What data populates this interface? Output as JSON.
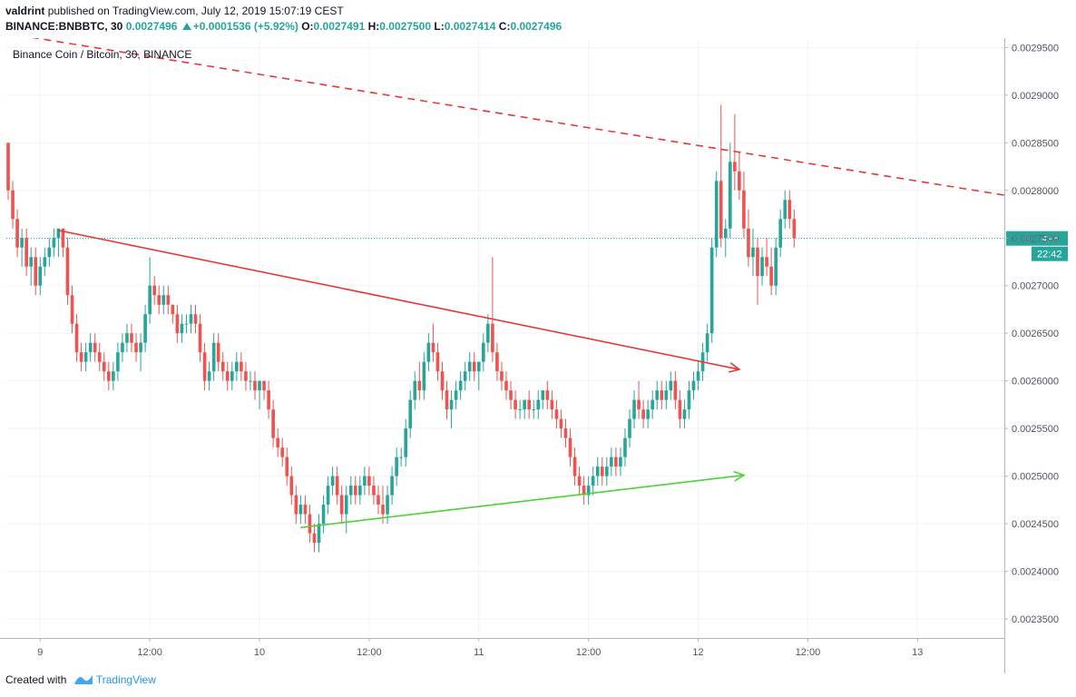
{
  "header": {
    "author": "valdrint",
    "published_text": "published on TradingView.com, July 12, 2019 15:07:19 CEST",
    "symbol": "BINANCE:BNBBTC, 30",
    "last": "0.0027496",
    "change": "+0.0001536 (+5.92%)",
    "o_label": "O:",
    "o_value": "0.0027491",
    "h_label": "H:",
    "h_value": "0.0027500",
    "l_label": "L:",
    "l_value": "0.0027414",
    "c_label": "C:",
    "c_value": "0.0027496"
  },
  "footer": {
    "created_with": "Created with",
    "brand": "TradingView"
  },
  "colors": {
    "up": "#26a69a",
    "down": "#ef5350",
    "trend_red": "#e53935",
    "trend_green": "#4cd137",
    "price_line": "#26a69a"
  },
  "chart_data": {
    "type": "candlestick",
    "title": "Binance Coin / Bitcoin, 30, BINANCE",
    "ylim": [
      0.00233,
      0.002958
    ],
    "y_ticks": [
      "0.0023500",
      "0.0024000",
      "0.0024500",
      "0.0025000",
      "0.0025500",
      "0.0026000",
      "0.0026500",
      "0.0027000",
      "0.0027500",
      "0.0028000",
      "0.0028500",
      "0.0029000",
      "0.0029500"
    ],
    "y_tick_values": [
      0.00235,
      0.0024,
      0.00245,
      0.0025,
      0.00255,
      0.0026,
      0.00265,
      0.0027,
      0.00275,
      0.0028,
      0.00285,
      0.0029,
      0.00295
    ],
    "x_ticks": [
      {
        "label": "9",
        "t": 0
      },
      {
        "label": "12:00",
        "t": 12
      },
      {
        "label": "10",
        "t": 24
      },
      {
        "label": "12:00",
        "t": 36
      },
      {
        "label": "11",
        "t": 48
      },
      {
        "label": "12:00",
        "t": 60
      },
      {
        "label": "12",
        "t": 72
      },
      {
        "label": "12:00",
        "t": 84
      },
      {
        "label": "13",
        "t": 96
      }
    ],
    "time_unit": "hours since July 9 00:00",
    "xlim": [
      -3.7,
      105.5
    ],
    "last_price": "0.0027496",
    "countdown": "22:42",
    "candles": [
      [
        -3.5,
        0.00285,
        0.00285,
        0.00279,
        0.0028
      ],
      [
        -3.0,
        0.0028,
        0.00281,
        0.00276,
        0.00277
      ],
      [
        -2.5,
        0.00277,
        0.00278,
        0.00273,
        0.00274
      ],
      [
        -2.0,
        0.00274,
        0.00276,
        0.00272,
        0.00275
      ],
      [
        -1.5,
        0.00275,
        0.00276,
        0.00271,
        0.00272
      ],
      [
        -1.0,
        0.00272,
        0.00274,
        0.0027,
        0.00273
      ],
      [
        -0.5,
        0.00273,
        0.00274,
        0.00269,
        0.0027
      ],
      [
        0.0,
        0.0027,
        0.00273,
        0.00269,
        0.00272
      ],
      [
        0.5,
        0.00272,
        0.00274,
        0.00271,
        0.00273
      ],
      [
        1.0,
        0.00273,
        0.00275,
        0.00272,
        0.00274
      ],
      [
        1.5,
        0.00274,
        0.00276,
        0.00273,
        0.00275
      ],
      [
        2.0,
        0.00275,
        0.00276,
        0.00273,
        0.00276
      ],
      [
        2.5,
        0.00276,
        0.00276,
        0.00273,
        0.00274
      ],
      [
        3.0,
        0.00274,
        0.00275,
        0.00268,
        0.00269
      ],
      [
        3.5,
        0.00269,
        0.0027,
        0.00265,
        0.00266
      ],
      [
        4.0,
        0.00266,
        0.00267,
        0.00262,
        0.00263
      ],
      [
        4.5,
        0.00263,
        0.00264,
        0.00261,
        0.00262
      ],
      [
        5.0,
        0.00262,
        0.00264,
        0.00261,
        0.00263
      ],
      [
        5.5,
        0.00263,
        0.00265,
        0.00262,
        0.00264
      ],
      [
        6.0,
        0.00264,
        0.00265,
        0.00262,
        0.00263
      ],
      [
        6.5,
        0.00263,
        0.00264,
        0.00261,
        0.00262
      ],
      [
        7.0,
        0.00262,
        0.00263,
        0.0026,
        0.00261
      ],
      [
        7.5,
        0.00261,
        0.00262,
        0.00259,
        0.0026
      ],
      [
        8.0,
        0.0026,
        0.00262,
        0.00259,
        0.00261
      ],
      [
        8.5,
        0.00261,
        0.00264,
        0.0026,
        0.00263
      ],
      [
        9.0,
        0.00263,
        0.00265,
        0.00262,
        0.00264
      ],
      [
        9.5,
        0.00264,
        0.00266,
        0.00263,
        0.00265
      ],
      [
        10.0,
        0.00265,
        0.00266,
        0.00263,
        0.00264
      ],
      [
        10.5,
        0.00264,
        0.00265,
        0.00262,
        0.00263
      ],
      [
        11.0,
        0.00263,
        0.00265,
        0.00261,
        0.00264
      ],
      [
        11.5,
        0.00264,
        0.00268,
        0.00263,
        0.00267
      ],
      [
        12.0,
        0.00267,
        0.00273,
        0.00266,
        0.0027
      ],
      [
        12.5,
        0.0027,
        0.00271,
        0.00268,
        0.00269
      ],
      [
        13.0,
        0.00269,
        0.0027,
        0.00267,
        0.00268
      ],
      [
        13.5,
        0.00268,
        0.0027,
        0.00267,
        0.00269
      ],
      [
        14.0,
        0.00269,
        0.0027,
        0.00267,
        0.00268
      ],
      [
        14.5,
        0.00268,
        0.00268,
        0.00266,
        0.00267
      ],
      [
        15.0,
        0.00267,
        0.00268,
        0.00264,
        0.00265
      ],
      [
        15.5,
        0.00265,
        0.00267,
        0.00264,
        0.00266
      ],
      [
        16.0,
        0.00266,
        0.00267,
        0.00265,
        0.00266
      ],
      [
        16.5,
        0.00266,
        0.00268,
        0.00265,
        0.00267
      ],
      [
        17.0,
        0.00267,
        0.00268,
        0.00265,
        0.00266
      ],
      [
        17.5,
        0.00266,
        0.00267,
        0.00262,
        0.00263
      ],
      [
        18.0,
        0.00263,
        0.00264,
        0.00259,
        0.0026
      ],
      [
        18.5,
        0.0026,
        0.00262,
        0.00259,
        0.00261
      ],
      [
        19.0,
        0.00261,
        0.00265,
        0.0026,
        0.00264
      ],
      [
        19.5,
        0.00264,
        0.00265,
        0.00261,
        0.00262
      ],
      [
        20.0,
        0.00262,
        0.00263,
        0.0026,
        0.00261
      ],
      [
        20.5,
        0.00261,
        0.00262,
        0.00259,
        0.0026
      ],
      [
        21.0,
        0.0026,
        0.00262,
        0.00259,
        0.00261
      ],
      [
        21.5,
        0.00261,
        0.00263,
        0.0026,
        0.00262
      ],
      [
        22.0,
        0.00262,
        0.00263,
        0.0026,
        0.00261
      ],
      [
        22.5,
        0.00261,
        0.00262,
        0.00259,
        0.0026
      ],
      [
        23.0,
        0.0026,
        0.00261,
        0.00259,
        0.0026
      ],
      [
        23.5,
        0.0026,
        0.00261,
        0.00258,
        0.00259
      ],
      [
        24.0,
        0.00259,
        0.0026,
        0.00257,
        0.0026
      ],
      [
        24.5,
        0.0026,
        0.0026,
        0.00258,
        0.00259
      ],
      [
        25.0,
        0.00259,
        0.0026,
        0.00256,
        0.00257
      ],
      [
        25.5,
        0.00257,
        0.00258,
        0.00253,
        0.00254
      ],
      [
        26.0,
        0.00254,
        0.00255,
        0.00252,
        0.00253
      ],
      [
        26.5,
        0.00253,
        0.00254,
        0.00251,
        0.00252
      ],
      [
        27.0,
        0.00252,
        0.00253,
        0.00249,
        0.0025
      ],
      [
        27.5,
        0.0025,
        0.00251,
        0.00247,
        0.00248
      ],
      [
        28.0,
        0.00248,
        0.00249,
        0.00245,
        0.00246
      ],
      [
        28.5,
        0.00246,
        0.00248,
        0.00245,
        0.00247
      ],
      [
        29.0,
        0.00247,
        0.00248,
        0.00245,
        0.00246
      ],
      [
        29.5,
        0.00246,
        0.00247,
        0.00243,
        0.00244
      ],
      [
        30.0,
        0.00244,
        0.00245,
        0.00242,
        0.00243
      ],
      [
        30.5,
        0.00243,
        0.00246,
        0.00242,
        0.00245
      ],
      [
        31.0,
        0.00245,
        0.00248,
        0.00244,
        0.00247
      ],
      [
        31.5,
        0.00247,
        0.0025,
        0.00246,
        0.00249
      ],
      [
        32.0,
        0.00249,
        0.00251,
        0.00248,
        0.0025
      ],
      [
        32.5,
        0.0025,
        0.00251,
        0.00247,
        0.00248
      ],
      [
        33.0,
        0.00248,
        0.00249,
        0.00245,
        0.00246
      ],
      [
        33.5,
        0.00246,
        0.00249,
        0.00244,
        0.00248
      ],
      [
        34.0,
        0.00248,
        0.0025,
        0.00247,
        0.00249
      ],
      [
        34.5,
        0.00249,
        0.0025,
        0.00247,
        0.00248
      ],
      [
        35.0,
        0.00248,
        0.0025,
        0.00247,
        0.00249
      ],
      [
        35.5,
        0.00249,
        0.00251,
        0.00248,
        0.0025
      ],
      [
        36.0,
        0.0025,
        0.00251,
        0.00248,
        0.00249
      ],
      [
        36.5,
        0.00249,
        0.0025,
        0.00247,
        0.00248
      ],
      [
        37.0,
        0.00248,
        0.00249,
        0.00246,
        0.00247
      ],
      [
        37.5,
        0.00247,
        0.00249,
        0.00245,
        0.00246
      ],
      [
        38.0,
        0.00246,
        0.00249,
        0.00245,
        0.00248
      ],
      [
        38.5,
        0.00248,
        0.00251,
        0.00247,
        0.0025
      ],
      [
        39.0,
        0.0025,
        0.00253,
        0.00249,
        0.00252
      ],
      [
        39.5,
        0.00252,
        0.00253,
        0.00251,
        0.00252
      ],
      [
        40.0,
        0.00252,
        0.00256,
        0.00251,
        0.00255
      ],
      [
        40.5,
        0.00255,
        0.00259,
        0.00254,
        0.00258
      ],
      [
        41.0,
        0.00258,
        0.00261,
        0.00257,
        0.0026
      ],
      [
        41.5,
        0.0026,
        0.00262,
        0.00258,
        0.00259
      ],
      [
        42.0,
        0.00259,
        0.00263,
        0.00258,
        0.00262
      ],
      [
        42.5,
        0.00262,
        0.00265,
        0.00261,
        0.00264
      ],
      [
        43.0,
        0.00264,
        0.00266,
        0.00262,
        0.00263
      ],
      [
        43.5,
        0.00263,
        0.00264,
        0.0026,
        0.00261
      ],
      [
        44.0,
        0.00261,
        0.00262,
        0.00258,
        0.00259
      ],
      [
        44.5,
        0.00259,
        0.0026,
        0.00256,
        0.00257
      ],
      [
        45.0,
        0.00257,
        0.00259,
        0.00255,
        0.00258
      ],
      [
        45.5,
        0.00258,
        0.0026,
        0.00257,
        0.00259
      ],
      [
        46.0,
        0.00259,
        0.00261,
        0.00258,
        0.0026
      ],
      [
        46.5,
        0.0026,
        0.00262,
        0.00259,
        0.00261
      ],
      [
        47.0,
        0.00261,
        0.00263,
        0.0026,
        0.00262
      ],
      [
        47.5,
        0.00262,
        0.00263,
        0.0026,
        0.00261
      ],
      [
        48.0,
        0.00261,
        0.00262,
        0.00259,
        0.00262
      ],
      [
        48.5,
        0.00262,
        0.00265,
        0.00261,
        0.00264
      ],
      [
        49.0,
        0.00264,
        0.00267,
        0.00263,
        0.00266
      ],
      [
        49.5,
        0.00266,
        0.00273,
        0.00262,
        0.00263
      ],
      [
        50.0,
        0.00263,
        0.00264,
        0.0026,
        0.00261
      ],
      [
        50.5,
        0.00261,
        0.00262,
        0.00259,
        0.0026
      ],
      [
        51.0,
        0.0026,
        0.00261,
        0.00258,
        0.00259
      ],
      [
        51.5,
        0.00259,
        0.0026,
        0.00257,
        0.00258
      ],
      [
        52.0,
        0.00258,
        0.00259,
        0.00256,
        0.00257
      ],
      [
        52.5,
        0.00257,
        0.00258,
        0.00256,
        0.00257
      ],
      [
        53.0,
        0.00257,
        0.00258,
        0.00256,
        0.00258
      ],
      [
        53.5,
        0.00258,
        0.00259,
        0.00256,
        0.00257
      ],
      [
        54.0,
        0.00257,
        0.00258,
        0.00256,
        0.00257
      ],
      [
        54.5,
        0.00257,
        0.00259,
        0.00256,
        0.00258
      ],
      [
        55.0,
        0.00258,
        0.00259,
        0.00257,
        0.00259
      ],
      [
        55.5,
        0.00259,
        0.0026,
        0.00257,
        0.00258
      ],
      [
        56.0,
        0.00258,
        0.00259,
        0.00256,
        0.00257
      ],
      [
        56.5,
        0.00257,
        0.00258,
        0.00255,
        0.00256
      ],
      [
        57.0,
        0.00256,
        0.00257,
        0.00254,
        0.00255
      ],
      [
        57.5,
        0.00255,
        0.00256,
        0.00253,
        0.00254
      ],
      [
        58.0,
        0.00254,
        0.00255,
        0.00251,
        0.00252
      ],
      [
        58.5,
        0.00252,
        0.00253,
        0.00249,
        0.0025
      ],
      [
        59.0,
        0.0025,
        0.00251,
        0.00248,
        0.00249
      ],
      [
        59.5,
        0.00249,
        0.0025,
        0.00247,
        0.00248
      ],
      [
        60.0,
        0.00248,
        0.0025,
        0.00247,
        0.00249
      ],
      [
        60.5,
        0.00249,
        0.00251,
        0.00248,
        0.0025
      ],
      [
        61.0,
        0.0025,
        0.00252,
        0.00249,
        0.00251
      ],
      [
        61.5,
        0.00251,
        0.00252,
        0.00249,
        0.0025
      ],
      [
        62.0,
        0.0025,
        0.00252,
        0.00249,
        0.00251
      ],
      [
        62.5,
        0.00251,
        0.00253,
        0.0025,
        0.00252
      ],
      [
        63.0,
        0.00252,
        0.00253,
        0.0025,
        0.00251
      ],
      [
        63.5,
        0.00251,
        0.00253,
        0.0025,
        0.00252
      ],
      [
        64.0,
        0.00252,
        0.00255,
        0.00251,
        0.00254
      ],
      [
        64.5,
        0.00254,
        0.00257,
        0.00253,
        0.00256
      ],
      [
        65.0,
        0.00256,
        0.00259,
        0.00255,
        0.00258
      ],
      [
        65.5,
        0.00258,
        0.0026,
        0.00256,
        0.00257
      ],
      [
        66.0,
        0.00257,
        0.00258,
        0.00255,
        0.00256
      ],
      [
        66.5,
        0.00256,
        0.00258,
        0.00255,
        0.00257
      ],
      [
        67.0,
        0.00257,
        0.00259,
        0.00256,
        0.00258
      ],
      [
        67.5,
        0.00258,
        0.0026,
        0.00257,
        0.00259
      ],
      [
        68.0,
        0.00259,
        0.0026,
        0.00257,
        0.00258
      ],
      [
        68.5,
        0.00258,
        0.0026,
        0.00257,
        0.00259
      ],
      [
        69.0,
        0.00259,
        0.00261,
        0.00258,
        0.0026
      ],
      [
        69.5,
        0.0026,
        0.00261,
        0.00257,
        0.00258
      ],
      [
        70.0,
        0.00258,
        0.00259,
        0.00255,
        0.00256
      ],
      [
        70.5,
        0.00256,
        0.00258,
        0.00255,
        0.00257
      ],
      [
        71.0,
        0.00257,
        0.0026,
        0.00256,
        0.00259
      ],
      [
        71.5,
        0.00259,
        0.00261,
        0.00258,
        0.0026
      ],
      [
        72.0,
        0.0026,
        0.00262,
        0.00259,
        0.00261
      ],
      [
        72.5,
        0.00261,
        0.00264,
        0.0026,
        0.00263
      ],
      [
        73.0,
        0.00263,
        0.00266,
        0.00262,
        0.00265
      ],
      [
        73.5,
        0.00265,
        0.00275,
        0.00264,
        0.00274
      ],
      [
        74.0,
        0.00274,
        0.00282,
        0.00273,
        0.00281
      ],
      [
        74.5,
        0.00281,
        0.00289,
        0.00274,
        0.00275
      ],
      [
        75.0,
        0.00275,
        0.00277,
        0.00273,
        0.00276
      ],
      [
        75.5,
        0.00276,
        0.00285,
        0.00275,
        0.00283
      ],
      [
        76.0,
        0.00283,
        0.00288,
        0.0028,
        0.00282
      ],
      [
        76.5,
        0.00282,
        0.00284,
        0.00279,
        0.0028
      ],
      [
        77.0,
        0.0028,
        0.00282,
        0.00275,
        0.00276
      ],
      [
        77.5,
        0.00276,
        0.00278,
        0.00272,
        0.00273
      ],
      [
        78.0,
        0.00273,
        0.00276,
        0.00271,
        0.00274
      ],
      [
        78.5,
        0.00274,
        0.00275,
        0.00268,
        0.00271
      ],
      [
        79.0,
        0.00271,
        0.00274,
        0.0027,
        0.00273
      ],
      [
        79.5,
        0.00273,
        0.00275,
        0.00271,
        0.00272
      ],
      [
        80.0,
        0.00272,
        0.00274,
        0.00269,
        0.0027
      ],
      [
        80.5,
        0.0027,
        0.00275,
        0.00269,
        0.00274
      ],
      [
        81.0,
        0.00274,
        0.00278,
        0.00273,
        0.00277
      ],
      [
        81.5,
        0.00277,
        0.0028,
        0.00276,
        0.00279
      ],
      [
        82.0,
        0.00279,
        0.0028,
        0.00276,
        0.00277
      ],
      [
        82.5,
        0.00277,
        0.00278,
        0.00274,
        0.00275
      ]
    ],
    "annotations": [
      {
        "kind": "trendline",
        "style": "dashed",
        "color": "#e53935",
        "p1": [
          -3.7,
          0.002965
        ],
        "p2": [
          105.5,
          0.002795
        ]
      },
      {
        "kind": "arrow",
        "style": "solid",
        "color": "#e53935",
        "p1": [
          2.0,
          0.002758
        ],
        "p2": [
          76.5,
          0.002612
        ]
      },
      {
        "kind": "arrow",
        "style": "solid",
        "color": "#4cd137",
        "p1": [
          28.5,
          0.002446
        ],
        "p2": [
          77.0,
          0.002501
        ]
      }
    ]
  }
}
